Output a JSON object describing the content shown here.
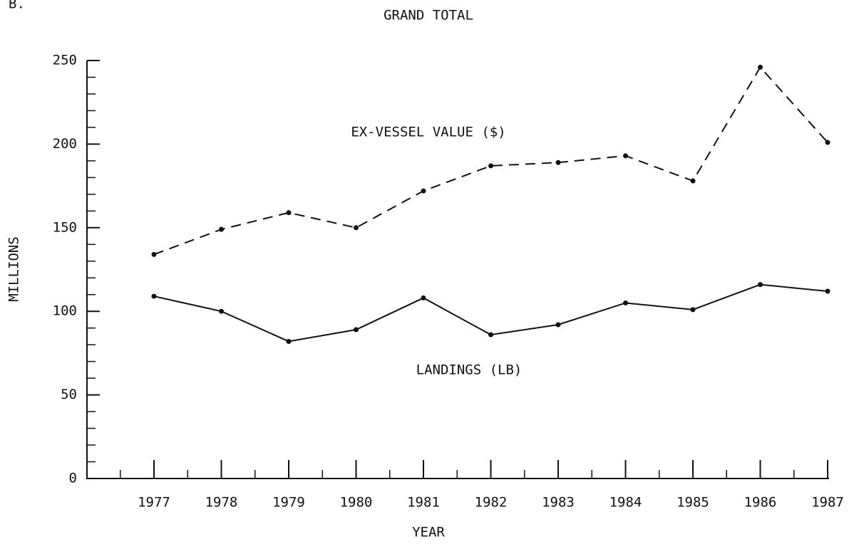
{
  "chart_data": {
    "type": "line",
    "panel_label": "B.",
    "title": "GRAND TOTAL",
    "x_label": "YEAR",
    "y_label": "MILLIONS",
    "categories": [
      "1977",
      "1978",
      "1979",
      "1980",
      "1981",
      "1982",
      "1983",
      "1984",
      "1985",
      "1986",
      "1987"
    ],
    "series": [
      {
        "name": "EX-VESSEL VALUE ($)",
        "color": "#111111",
        "style": "dashed",
        "values": [
          134,
          149,
          159,
          150,
          172,
          187,
          189,
          193,
          178,
          246,
          201
        ]
      },
      {
        "name": "LANDINGS (LB)",
        "color": "#111111",
        "style": "solid",
        "values": [
          109,
          100,
          82,
          89,
          108,
          86,
          92,
          105,
          101,
          116,
          112
        ]
      }
    ],
    "ylim": [
      0,
      250
    ],
    "yticks": [
      0,
      50,
      100,
      150,
      200,
      250
    ],
    "y_minor_ticks": [
      10,
      20,
      30,
      40,
      60,
      70,
      80,
      90,
      110,
      120,
      130,
      140,
      160,
      170,
      180,
      190,
      210,
      220,
      230,
      240
    ],
    "grid": false
  }
}
